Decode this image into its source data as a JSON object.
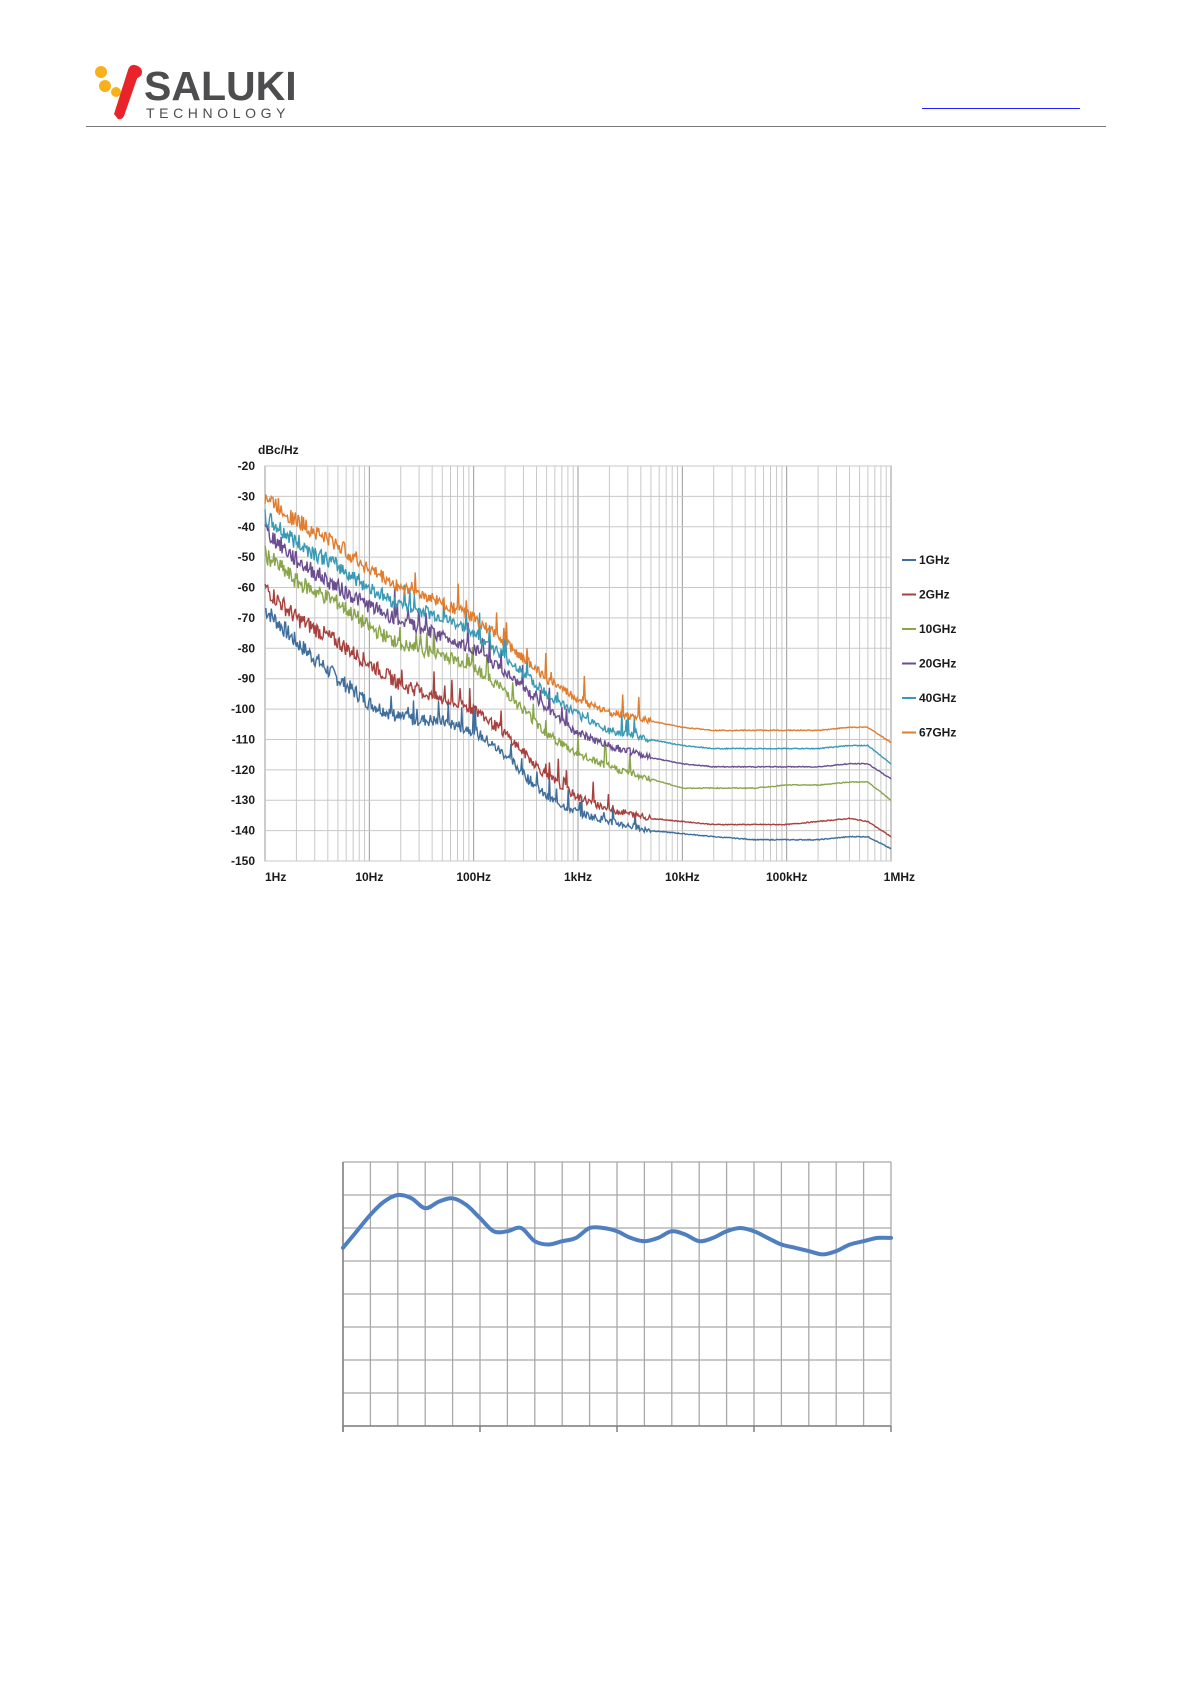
{
  "header": {
    "brand_name": "SALUKI",
    "brand_sub": "TECHNOLOGY",
    "brand_colors": {
      "accent": "#e8232a",
      "secondary": "#f7b21b",
      "text": "#4d4d4f"
    },
    "link_color": "#1f1fff"
  },
  "chart_data": [
    {
      "type": "line",
      "title": "",
      "ylabel": "dBc/Hz",
      "xlabel": "",
      "x_scale": "log",
      "grid": true,
      "legend_placement": "right",
      "ylim": [
        -150,
        -20
      ],
      "yticks": [
        -20,
        -30,
        -40,
        -50,
        -60,
        -70,
        -80,
        -90,
        -100,
        -110,
        -120,
        -130,
        -140,
        -150
      ],
      "xticks": [
        {
          "value": 1,
          "label": "1Hz"
        },
        {
          "value": 10,
          "label": "10Hz"
        },
        {
          "value": 100,
          "label": "100Hz"
        },
        {
          "value": 1000,
          "label": "1kHz"
        },
        {
          "value": 10000,
          "label": "10kHz"
        },
        {
          "value": 100000,
          "label": "100kHz"
        },
        {
          "value": 1000000,
          "label": "1MHz"
        }
      ],
      "x": [
        1,
        2,
        5,
        10,
        20,
        50,
        100,
        200,
        500,
        1000,
        2000,
        5000,
        10000,
        20000,
        50000,
        100000,
        200000,
        400000,
        600000,
        1000000
      ],
      "series": [
        {
          "name": "1GHz",
          "color": "#3f6e9c",
          "values": [
            -67,
            -78,
            -90,
            -98,
            -103,
            -104,
            -107,
            -115,
            -129,
            -134,
            -137,
            -140,
            -141,
            -142,
            -143,
            -143,
            -143,
            -142,
            -142,
            -146
          ]
        },
        {
          "name": "2GHz",
          "color": "#a8413d",
          "values": [
            -60,
            -70,
            -78,
            -85,
            -92,
            -97,
            -100,
            -108,
            -122,
            -129,
            -133,
            -136,
            -137,
            -138,
            -138,
            -138,
            -137,
            -136,
            -137,
            -142
          ]
        },
        {
          "name": "10GHz",
          "color": "#8aa64b",
          "values": [
            -49,
            -58,
            -65,
            -73,
            -79,
            -82,
            -86,
            -94,
            -108,
            -115,
            -119,
            -123,
            -126,
            -126,
            -126,
            -125,
            -125,
            -124,
            -124,
            -130
          ]
        },
        {
          "name": "20GHz",
          "color": "#6a4e90",
          "values": [
            -41,
            -51,
            -60,
            -66,
            -71,
            -76,
            -80,
            -88,
            -100,
            -108,
            -112,
            -116,
            -118,
            -119,
            -119,
            -119,
            -119,
            -118,
            -118,
            -123
          ]
        },
        {
          "name": "40GHz",
          "color": "#3a9ab4",
          "values": [
            -37,
            -45,
            -53,
            -60,
            -66,
            -70,
            -75,
            -83,
            -95,
            -102,
            -107,
            -110,
            -112,
            -113,
            -113,
            -113,
            -113,
            -112,
            -112,
            -118
          ]
        },
        {
          "name": "67GHz",
          "color": "#e07d2e",
          "values": [
            -30,
            -38,
            -46,
            -54,
            -60,
            -65,
            -70,
            -78,
            -90,
            -97,
            -101,
            -104,
            -106,
            -107,
            -107,
            -107,
            -107,
            -106,
            -106,
            -111
          ]
        }
      ]
    },
    {
      "type": "line",
      "title": "",
      "xlabel": "",
      "ylabel": "",
      "grid": true,
      "ylim": [
        0,
        8
      ],
      "xlim": [
        0,
        20
      ],
      "series": [
        {
          "color": "#4f7fc0",
          "x": [
            0,
            0.4,
            1,
            1.5,
            2,
            2.5,
            3,
            3.5,
            4,
            4.5,
            5,
            5.5,
            6,
            6.5,
            7,
            7.5,
            8,
            8.5,
            9,
            9.5,
            10,
            10.5,
            11,
            11.5,
            12,
            12.5,
            13,
            13.5,
            14,
            14.5,
            15,
            15.5,
            16,
            16.5,
            17,
            17.5,
            18,
            18.5,
            19,
            19.5,
            20
          ],
          "values": [
            5.4,
            5.8,
            6.4,
            6.8,
            7.0,
            6.9,
            6.6,
            6.8,
            6.9,
            6.7,
            6.3,
            5.9,
            5.9,
            6.0,
            5.6,
            5.5,
            5.6,
            5.7,
            6.0,
            6.0,
            5.9,
            5.7,
            5.6,
            5.7,
            5.9,
            5.8,
            5.6,
            5.7,
            5.9,
            6.0,
            5.9,
            5.7,
            5.5,
            5.4,
            5.3,
            5.2,
            5.3,
            5.5,
            5.6,
            5.7,
            5.7
          ]
        }
      ]
    }
  ]
}
